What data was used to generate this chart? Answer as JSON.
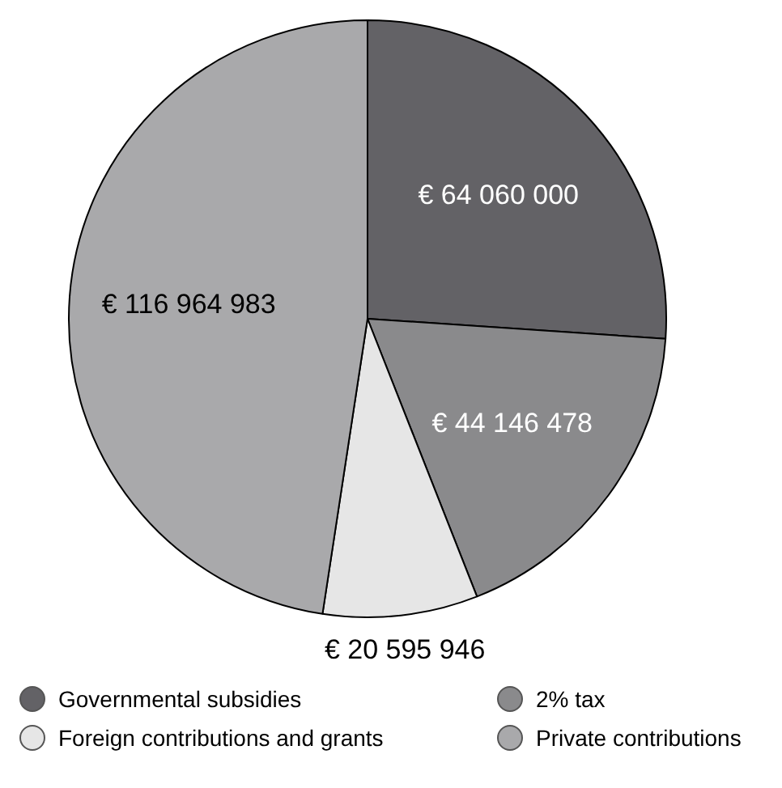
{
  "chart_data": {
    "type": "pie",
    "categories": [
      "Governmental subsidies",
      "2% tax",
      "Foreign contributions and grants",
      "Private contributions"
    ],
    "values": [
      64060000,
      44146478,
      20595946,
      116964983
    ],
    "colors": [
      "#636266",
      "#8a8a8c",
      "#e6e6e6",
      "#a9a9ab"
    ],
    "value_labels": [
      "€ 64 060 000",
      "€ 44 146 478",
      "€ 20 595 946",
      "€ 116 964 983"
    ],
    "legend": "bottom"
  }
}
